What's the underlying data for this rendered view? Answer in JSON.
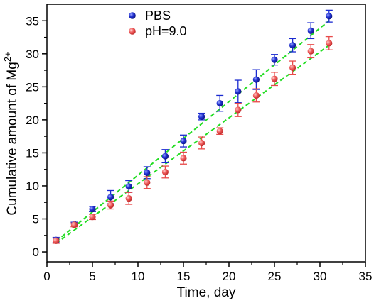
{
  "chart_data": {
    "type": "scatter",
    "xlabel": "Time, day",
    "ylabel_main": "Cumulative amount of Mg",
    "ylabel_sup": "2+",
    "xlim": [
      0,
      35
    ],
    "ylim": [
      -1.5,
      37.5
    ],
    "xticks": [
      0,
      5,
      10,
      15,
      20,
      25,
      30,
      35
    ],
    "yticks": [
      0,
      5,
      10,
      15,
      20,
      25,
      30,
      35
    ],
    "grid": false,
    "legend_position": "top-center",
    "trendline_color": "#22dd22",
    "series": [
      {
        "name": "PBS",
        "color": "#1f2fd0",
        "errorbar_color": "#1a2ad0",
        "x": [
          1,
          3,
          5,
          7,
          9,
          11,
          13,
          15,
          17,
          19,
          21,
          23,
          25,
          27,
          29,
          31
        ],
        "y": [
          1.8,
          4.2,
          6.5,
          8.3,
          9.9,
          12.0,
          14.5,
          16.8,
          20.5,
          22.5,
          24.3,
          26.1,
          29.1,
          31.3,
          33.5,
          35.7
        ],
        "err": [
          0.4,
          0.3,
          0.4,
          1.0,
          0.9,
          0.9,
          1.0,
          0.9,
          0.5,
          1.2,
          1.7,
          1.5,
          0.8,
          1.0,
          1.2,
          0.9
        ],
        "fit": [
          [
            1,
            1.6
          ],
          [
            31,
            35.0
          ]
        ]
      },
      {
        "name": "pH=9.0",
        "color": "#e84a4a",
        "errorbar_color": "#e84a4a",
        "x": [
          1,
          3,
          5,
          7,
          9,
          11,
          13,
          15,
          17,
          19,
          21,
          23,
          25,
          27,
          29,
          31
        ],
        "y": [
          1.7,
          4.1,
          5.3,
          7.1,
          8.1,
          10.5,
          12.1,
          14.2,
          16.5,
          18.3,
          21.5,
          23.7,
          26.2,
          27.9,
          30.4,
          31.6
        ],
        "err": [
          0.4,
          0.3,
          0.4,
          0.6,
          0.9,
          0.9,
          0.9,
          0.9,
          0.9,
          0.5,
          1.0,
          1.0,
          1.0,
          1.0,
          1.0,
          1.0
        ],
        "fit": [
          [
            1,
            1.3
          ],
          [
            31,
            31.3
          ]
        ]
      }
    ]
  }
}
